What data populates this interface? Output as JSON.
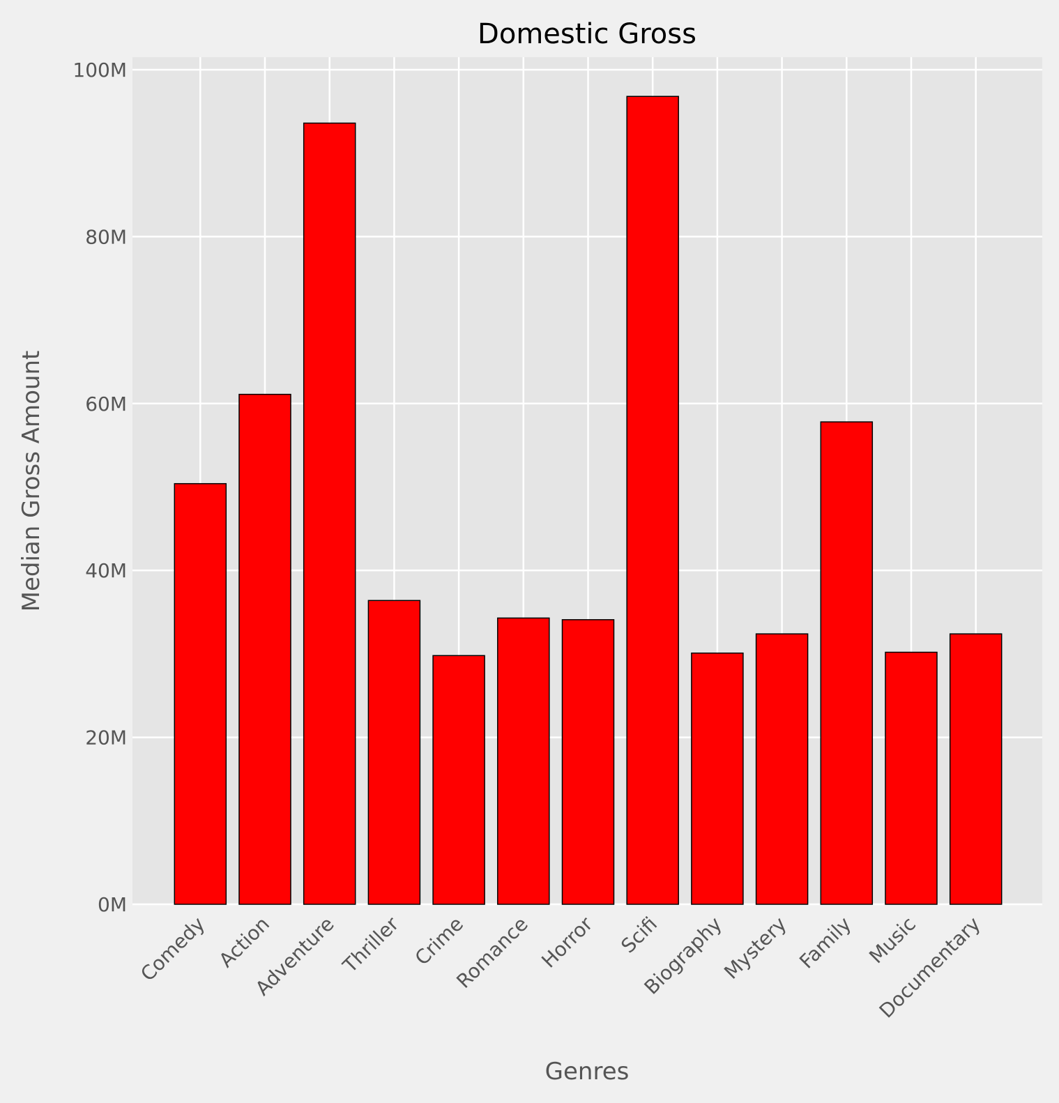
{
  "chart_data": {
    "type": "bar",
    "title": "Domestic Gross",
    "xlabel": "Genres",
    "ylabel": "Median Gross Amount",
    "categories": [
      "Comedy",
      "Action",
      "Adventure",
      "Thriller",
      "Crime",
      "Romance",
      "Horror",
      "Scifi",
      "Biography",
      "Mystery",
      "Family",
      "Music",
      "Documentary"
    ],
    "values": [
      50.4,
      61.1,
      93.6,
      36.4,
      29.8,
      34.3,
      34.1,
      96.8,
      30.1,
      32.4,
      57.8,
      30.2,
      32.4
    ],
    "value_unit": "M",
    "ylim": [
      0,
      101.5
    ],
    "yticks": [
      0,
      20,
      40,
      60,
      80,
      100
    ],
    "ytick_labels": [
      "0M",
      "20M",
      "40M",
      "60M",
      "80M",
      "100M"
    ],
    "grid": true,
    "colors": {
      "bar": "#ff0000",
      "bar_edge": "#000000",
      "plot_bg": "#e5e5e5",
      "figure_bg": "#f0f0f0",
      "grid": "#ffffff"
    }
  }
}
